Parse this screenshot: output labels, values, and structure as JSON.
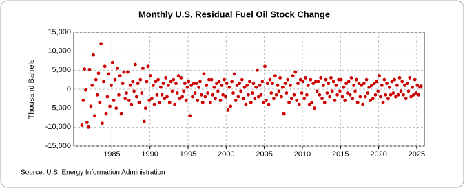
{
  "chart_data": {
    "type": "scatter",
    "title": "Monthly U.S. Residual Fuel Oil Stock Change",
    "ylabel": "Thousand Barrels",
    "source": "Source: U.S. Energy Information Administration",
    "color": "#cc0000",
    "grid": true,
    "xlim": [
      1980,
      2026
    ],
    "xticks": [
      1985,
      1990,
      1995,
      2000,
      2005,
      2010,
      2015,
      2020,
      2025
    ],
    "ylim": [
      -15000,
      15000
    ],
    "yticks": [
      {
        "value": -15000,
        "label": "-15,000"
      },
      {
        "value": -10000,
        "label": "-10,000"
      },
      {
        "value": -5000,
        "label": "-5,000"
      },
      0,
      {
        "value": 5000,
        "label": "5,000"
      },
      {
        "value": 10000,
        "label": "10,000"
      },
      {
        "value": 15000,
        "label": "15,000"
      }
    ],
    "x": [
      1981.08,
      1981.25,
      1981.42,
      1981.58,
      1981.75,
      1981.92,
      1982.08,
      1982.25,
      1982.42,
      1982.58,
      1982.75,
      1982.92,
      1983.08,
      1983.25,
      1983.42,
      1983.58,
      1983.75,
      1983.92,
      1984.08,
      1984.25,
      1984.42,
      1984.58,
      1984.75,
      1984.92,
      1985.08,
      1985.25,
      1985.42,
      1985.58,
      1985.75,
      1985.92,
      1986.08,
      1986.25,
      1986.42,
      1986.58,
      1986.75,
      1986.92,
      1987.08,
      1987.25,
      1987.42,
      1987.58,
      1987.75,
      1987.92,
      1988.08,
      1988.25,
      1988.42,
      1988.58,
      1988.75,
      1988.92,
      1989.08,
      1989.25,
      1989.42,
      1989.58,
      1989.75,
      1989.92,
      1990.08,
      1990.25,
      1990.42,
      1990.58,
      1990.75,
      1990.92,
      1991.08,
      1991.25,
      1991.42,
      1991.58,
      1991.75,
      1991.92,
      1992.08,
      1992.25,
      1992.42,
      1992.58,
      1992.75,
      1992.92,
      1993.08,
      1993.25,
      1993.42,
      1993.58,
      1993.75,
      1993.92,
      1994.08,
      1994.25,
      1994.42,
      1994.58,
      1994.75,
      1994.92,
      1995.08,
      1995.25,
      1995.42,
      1995.58,
      1995.75,
      1995.92,
      1996.08,
      1996.25,
      1996.42,
      1996.58,
      1996.75,
      1996.92,
      1997.08,
      1997.25,
      1997.42,
      1997.58,
      1997.75,
      1997.92,
      1998.08,
      1998.25,
      1998.42,
      1998.58,
      1998.75,
      1998.92,
      1999.08,
      1999.25,
      1999.42,
      1999.58,
      1999.75,
      1999.92,
      2000.08,
      2000.25,
      2000.42,
      2000.58,
      2000.75,
      2000.92,
      2001.08,
      2001.25,
      2001.42,
      2001.58,
      2001.75,
      2001.92,
      2002.08,
      2002.25,
      2002.42,
      2002.58,
      2002.75,
      2002.92,
      2003.08,
      2003.25,
      2003.42,
      2003.58,
      2003.75,
      2003.92,
      2004.08,
      2004.25,
      2004.42,
      2004.58,
      2004.75,
      2004.92,
      2005.08,
      2005.25,
      2005.42,
      2005.58,
      2005.75,
      2005.92,
      2006.08,
      2006.25,
      2006.42,
      2006.58,
      2006.75,
      2006.92,
      2007.08,
      2007.25,
      2007.42,
      2007.58,
      2007.75,
      2007.92,
      2008.08,
      2008.25,
      2008.42,
      2008.58,
      2008.75,
      2008.92,
      2009.08,
      2009.25,
      2009.42,
      2009.58,
      2009.75,
      2009.92,
      2010.08,
      2010.25,
      2010.42,
      2010.58,
      2010.75,
      2010.92,
      2011.08,
      2011.25,
      2011.42,
      2011.58,
      2011.75,
      2011.92,
      2012.08,
      2012.25,
      2012.42,
      2012.58,
      2012.75,
      2012.92,
      2013.08,
      2013.25,
      2013.42,
      2013.58,
      2013.75,
      2013.92,
      2014.08,
      2014.25,
      2014.42,
      2014.58,
      2014.75,
      2014.92,
      2015.08,
      2015.25,
      2015.42,
      2015.58,
      2015.75,
      2015.92,
      2016.08,
      2016.25,
      2016.42,
      2016.58,
      2016.75,
      2016.92,
      2017.08,
      2017.25,
      2017.42,
      2017.58,
      2017.75,
      2017.92,
      2018.08,
      2018.25,
      2018.42,
      2018.58,
      2018.75,
      2018.92,
      2019.08,
      2019.25,
      2019.42,
      2019.58,
      2019.75,
      2019.92,
      2020.08,
      2020.25,
      2020.42,
      2020.58,
      2020.75,
      2020.92,
      2021.08,
      2021.25,
      2021.42,
      2021.58,
      2021.75,
      2021.92,
      2022.08,
      2022.25,
      2022.42,
      2022.58,
      2022.75,
      2022.92,
      2023.08,
      2023.25,
      2023.42,
      2023.58,
      2023.75,
      2023.92,
      2024.08,
      2024.25,
      2024.42,
      2024.58,
      2024.75,
      2024.92,
      2025.08,
      2025.25,
      2025.42,
      2025.58
    ],
    "values": [
      -9500,
      -3000,
      5300,
      -200,
      -8800,
      -10000,
      5200,
      -4500,
      1000,
      9000,
      -7000,
      2500,
      -1500,
      4200,
      -3500,
      12000,
      -9000,
      2000,
      6000,
      -6500,
      -2000,
      4000,
      -4500,
      1000,
      7000,
      -3000,
      2500,
      -5000,
      5500,
      -1500,
      3500,
      -6500,
      1500,
      4500,
      -2500,
      -1000,
      4500,
      -3000,
      1000,
      -4000,
      2000,
      -500,
      6500,
      -2000,
      1500,
      -3500,
      2500,
      -1000,
      5500,
      -8500,
      -5000,
      2000,
      6000,
      -3000,
      3500,
      -2500,
      1000,
      -4000,
      2000,
      -1500,
      2500,
      -3500,
      500,
      -1500,
      1500,
      -2500,
      3000,
      -2000,
      1000,
      -3500,
      2000,
      -500,
      2500,
      -4000,
      1500,
      -1000,
      3500,
      -2500,
      3000,
      -2000,
      -500,
      1500,
      -3000,
      500,
      2000,
      -7000,
      1000,
      -2000,
      1500,
      -1000,
      1500,
      -3000,
      500,
      2000,
      -1500,
      -3500,
      4000,
      -2000,
      1000,
      -1000,
      2500,
      -3500,
      2500,
      -1500,
      500,
      -2500,
      1500,
      -500,
      2000,
      -3000,
      1000,
      -1500,
      2500,
      -2000,
      1500,
      -5500,
      500,
      -4500,
      2000,
      -1000,
      4000,
      -3000,
      1000,
      -2000,
      1500,
      -500,
      2500,
      -2500,
      500,
      -4000,
      1000,
      -1500,
      2000,
      -3500,
      -1000,
      1500,
      -2500,
      500,
      5000,
      -2000,
      1000,
      -1500,
      2000,
      -3500,
      6000,
      -3000,
      1500,
      -4000,
      2500,
      -1000,
      1500,
      -2500,
      3500,
      -1500,
      1000,
      -500,
      3000,
      -2000,
      500,
      -6500,
      1500,
      -1000,
      2500,
      -3500,
      1000,
      -2500,
      3500,
      -1500,
      4500,
      -3000,
      1500,
      -4000,
      2500,
      -1000,
      2000,
      -2500,
      3000,
      -1500,
      1000,
      -4000,
      2500,
      -3500,
      1500,
      -5000,
      2000,
      -500,
      2000,
      -1500,
      3000,
      -2500,
      1000,
      -3500,
      2500,
      -1000,
      1500,
      -2000,
      3000,
      -500,
      2000,
      -3000,
      1000,
      -1500,
      2500,
      -500,
      2500,
      -2000,
      500,
      -3000,
      1500,
      -1000,
      2000,
      -1500,
      3000,
      -2500,
      1000,
      -500,
      2500,
      -3500,
      1500,
      -2000,
      1000,
      -4000,
      1500,
      -2000,
      2500,
      -1000,
      500,
      -3000,
      1000,
      -2500,
      1500,
      -1500,
      2000,
      -500,
      3500,
      -2000,
      1000,
      -3500,
      2500,
      -1500,
      1500,
      -2500,
      500,
      -1500,
      2000,
      -1000,
      2500,
      -2000,
      1000,
      -1500,
      3000,
      -500,
      2000,
      -1500,
      1000,
      -2500,
      1500,
      -500,
      3000,
      -2000,
      500,
      -1500,
      2500,
      -1000,
      1000,
      -1500,
      500,
      800
    ]
  }
}
